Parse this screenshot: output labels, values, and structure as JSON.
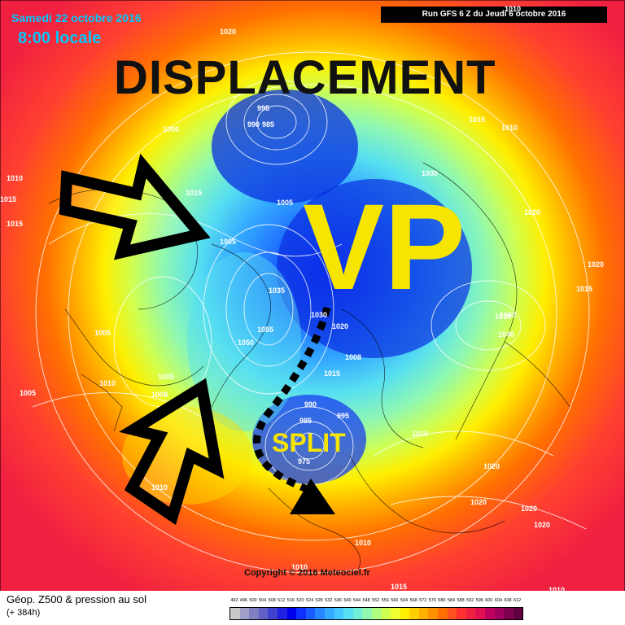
{
  "header": {
    "date": "Samedi 22 octobre 2016",
    "time": "8:00 locale",
    "run": "Run GFS 6 Z du Jeudi 6 octobre 2016"
  },
  "annotations": {
    "title": "DISPLACEMENT",
    "vp": "VP",
    "split": "SPLIT"
  },
  "footer": {
    "legend_title": "Géop. Z500 & pression au sol",
    "legend_sub": "(+ 384h)",
    "copyright": "Copyright © 2016 Meteociel.fr",
    "scale_values": [
      "492",
      "496",
      "500",
      "504",
      "508",
      "512",
      "516",
      "520",
      "524",
      "528",
      "532",
      "536",
      "540",
      "544",
      "548",
      "552",
      "556",
      "560",
      "564",
      "568",
      "572",
      "576",
      "580",
      "584",
      "588",
      "592",
      "596",
      "600",
      "604",
      "608",
      "612"
    ],
    "scale_colors": [
      "#c8c8c8",
      "#a0a0c8",
      "#8080c0",
      "#6060c8",
      "#4040d0",
      "#2020e0",
      "#0000f0",
      "#1030ff",
      "#1c5cff",
      "#2888ff",
      "#34aaff",
      "#44c8ff",
      "#58e0f0",
      "#70f0d8",
      "#90f8b0",
      "#b0ff80",
      "#d0ff50",
      "#f0ff30",
      "#ffee00",
      "#ffd000",
      "#ffb000",
      "#ff9000",
      "#ff7000",
      "#ff5020",
      "#ff3030",
      "#f02040",
      "#e01050",
      "#c00060",
      "#a00060",
      "#800050",
      "#600040"
    ]
  },
  "pressure_labels": [
    "1020",
    "1010",
    "995",
    "990",
    "985",
    "1000",
    "1010",
    "1015",
    "1030",
    "1015",
    "1010",
    "1015",
    "1015",
    "1005",
    "1005",
    "1020",
    "1020",
    "1015",
    "1035",
    "1030",
    "1020",
    "1040",
    "1010",
    "1040",
    "1005",
    "1055",
    "1050",
    "1008",
    "1015",
    "1005",
    "1010",
    "1008",
    "1005",
    "990",
    "985",
    "995",
    "1010",
    "1020",
    "975",
    "1010",
    "1020",
    "1020",
    "1020",
    "1010",
    "1010",
    "1015",
    "1010"
  ]
}
